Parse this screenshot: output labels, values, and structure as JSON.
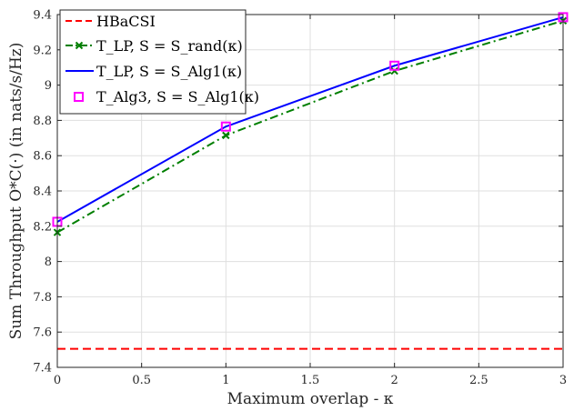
{
  "chart_data": {
    "type": "line",
    "xlabel": "Maximum overlap - κ",
    "ylabel": "Sum Throughput O*C(·) (in nats/s/Hz)",
    "xlim": [
      0,
      3
    ],
    "ylim": [
      7.4,
      9.4
    ],
    "xticks": [
      "0",
      "0.5",
      "1",
      "1.5",
      "2",
      "2.5",
      "3"
    ],
    "yticks": [
      "7.4",
      "7.6",
      "7.8",
      "8",
      "8.2",
      "8.4",
      "8.6",
      "8.8",
      "9",
      "9.2",
      "9.4"
    ],
    "grid": true,
    "legend_position": "top-left",
    "x": [
      0,
      1,
      2,
      3
    ],
    "series": [
      {
        "name": "HBaCSI",
        "values": [
          7.505,
          7.505,
          7.505,
          7.505
        ],
        "color": "#ff0000",
        "style": "dashed",
        "marker": "none"
      },
      {
        "name": "T_LP, S = S_rand(κ)",
        "values": [
          8.165,
          8.715,
          9.08,
          9.365
        ],
        "color": "#007f00",
        "style": "dash-dot",
        "marker": "x"
      },
      {
        "name": "T_LP, S = S_Alg1(κ)",
        "values": [
          8.225,
          8.765,
          9.11,
          9.385
        ],
        "color": "#0000ff",
        "style": "solid",
        "marker": "none"
      },
      {
        "name": "T_Alg3, S = S_Alg1(κ)",
        "values": [
          8.225,
          8.765,
          9.11,
          9.385
        ],
        "color": "#ff00ff",
        "style": "none",
        "marker": "square"
      }
    ]
  }
}
